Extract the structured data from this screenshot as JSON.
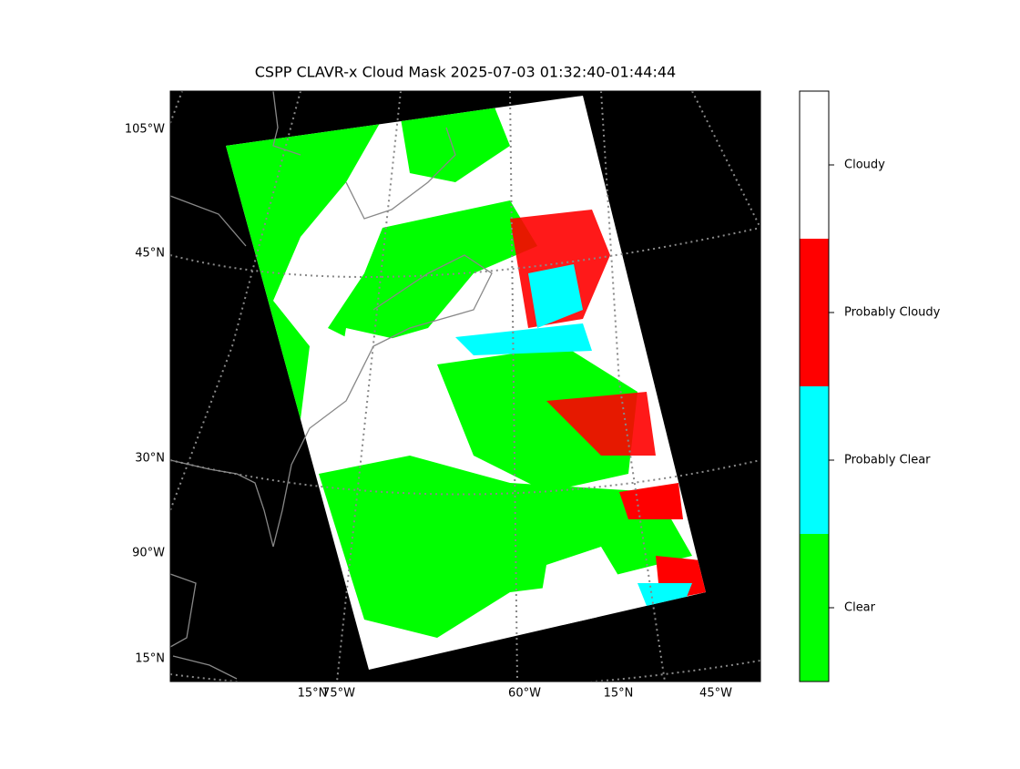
{
  "title": "CSPP CLAVR-x Cloud Mask 2025-07-03 01:32:40-01:44:44",
  "left_labels": [
    "105°W",
    "45°N",
    "30°N",
    "90°W",
    "15°N"
  ],
  "bottom_labels": [
    "15°N",
    "75°W",
    "60°W",
    "15°N",
    "45°W"
  ],
  "colorbar": {
    "categories": [
      "Clear",
      "Probably Clear",
      "Probably Cloudy",
      "Cloudy"
    ],
    "colors": [
      "#00ff00",
      "#00ffff",
      "#ff0000",
      "#ffffff"
    ]
  }
}
